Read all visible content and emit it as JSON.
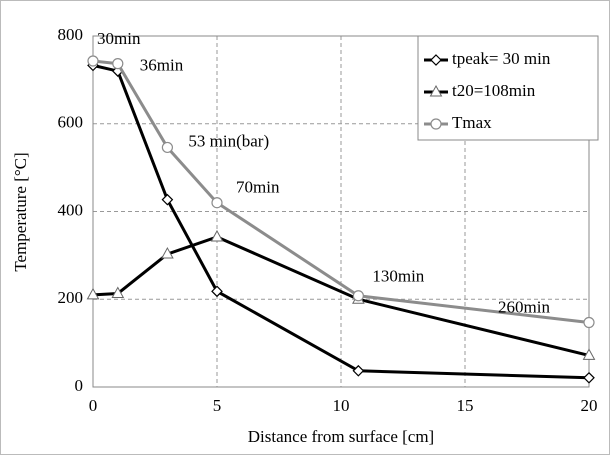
{
  "chart_data": {
    "type": "line",
    "xlabel": "Distance from surface [cm]",
    "ylabel": "Temperature [°C]",
    "xlim": [
      0,
      20
    ],
    "xticks": [
      0,
      5,
      10,
      15,
      20
    ],
    "ylim": [
      0,
      800
    ],
    "yticks": [
      0,
      200,
      400,
      600,
      800
    ],
    "grid": true,
    "legend": "upper right",
    "series": [
      {
        "name": "tpeak= 30 min",
        "color": "#000000",
        "marker": "diamond",
        "x": [
          0,
          1,
          3,
          5,
          10.7,
          20
        ],
        "values": [
          733,
          720,
          427,
          218,
          37,
          21
        ]
      },
      {
        "name": "t20=108min",
        "color": "#000000",
        "marker": "triangle",
        "x": [
          0,
          1,
          3,
          5,
          10.7,
          20
        ],
        "values": [
          210,
          213,
          303,
          342,
          200,
          72
        ]
      },
      {
        "name": "Tmax",
        "color": "#8c8c8c",
        "marker": "circle",
        "x": [
          0,
          1,
          3,
          5,
          10.7,
          20
        ],
        "values": [
          743,
          737,
          546,
          420,
          208,
          147
        ]
      }
    ],
    "annotations": [
      "30min",
      "36min",
      "53 min(bar)",
      "70min",
      "130min",
      "260min"
    ]
  }
}
